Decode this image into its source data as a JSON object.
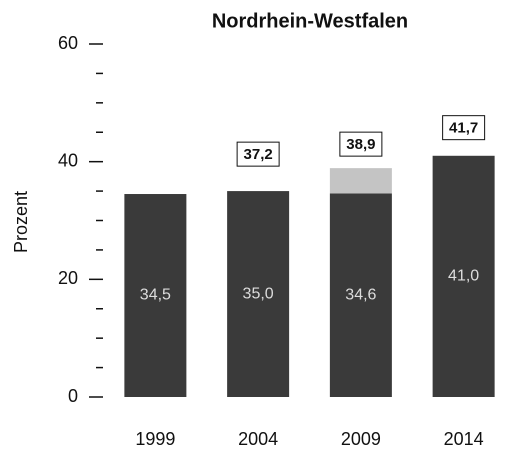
{
  "chart_data": {
    "type": "bar",
    "stacked": true,
    "title": "Nordrhein-Westfalen",
    "ylabel": "Prozent",
    "categories": [
      "1999",
      "2004",
      "2009",
      "2014"
    ],
    "series": [
      {
        "color": "#3a3a3a",
        "values": [
          34.5,
          35.0,
          34.6,
          41.0
        ],
        "value_labels": [
          "34,5",
          "35,0",
          "34,6",
          "41,0"
        ]
      },
      {
        "color": "#c4c4c4",
        "values": [
          null,
          null,
          4.3,
          null
        ]
      }
    ],
    "totals": {
      "values": [
        null,
        37.2,
        38.9,
        41.7
      ],
      "value_labels": [
        null,
        "37,2",
        "38,9",
        "41,7"
      ]
    },
    "ylim": [
      0,
      60
    ],
    "yticks": [
      0,
      20,
      40,
      60
    ],
    "yticks_minor": [
      5,
      10,
      15,
      25,
      30,
      35,
      45,
      50,
      55
    ]
  }
}
